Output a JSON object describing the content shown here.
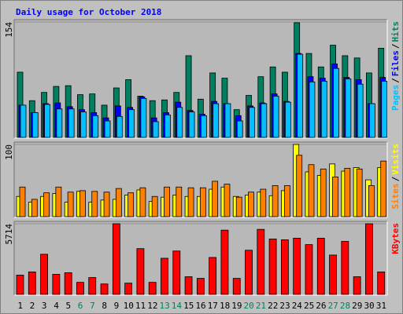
{
  "chart_data": [
    {
      "type": "bar",
      "title": "Daily usage for October 2018",
      "legend_separator": "/",
      "ylim": [
        0,
        154
      ],
      "yticks": [
        154
      ],
      "series": [
        {
          "name": "Hits",
          "color": "#008060",
          "values": [
            87,
            49,
            60,
            68,
            69,
            57,
            58,
            43,
            66,
            77,
            55,
            49,
            50,
            60,
            109,
            51,
            86,
            79,
            37,
            56,
            81,
            94,
            87,
            153,
            112,
            94,
            123,
            109,
            106,
            86,
            119
          ]
        },
        {
          "name": "Files",
          "color": "#0000ff",
          "values": [
            43,
            33,
            45,
            46,
            41,
            37,
            33,
            26,
            42,
            40,
            54,
            26,
            33,
            47,
            36,
            31,
            48,
            45,
            29,
            42,
            46,
            58,
            48,
            112,
            81,
            79,
            98,
            80,
            77,
            45,
            80
          ]
        },
        {
          "name": "Pages",
          "color": "#00c0ff",
          "values": [
            43,
            33,
            44,
            38,
            38,
            34,
            29,
            22,
            28,
            37,
            52,
            21,
            30,
            40,
            34,
            29,
            45,
            45,
            22,
            40,
            45,
            55,
            47,
            111,
            74,
            75,
            92,
            78,
            71,
            45,
            75
          ]
        }
      ]
    },
    {
      "type": "bar",
      "legend_separator": "/",
      "ylim": [
        0,
        100
      ],
      "yticks": [
        100
      ],
      "series": [
        {
          "name": "Visits",
          "color": "#ffff00",
          "values": [
            28,
            20,
            28,
            32,
            20,
            35,
            20,
            23,
            24,
            30,
            37,
            21,
            27,
            30,
            28,
            28,
            38,
            41,
            28,
            30,
            34,
            29,
            36,
            100,
            62,
            57,
            73,
            63,
            68,
            51,
            68
          ]
        },
        {
          "name": "Sites",
          "color": "#ff8000",
          "values": [
            41,
            24,
            33,
            41,
            34,
            36,
            35,
            34,
            39,
            33,
            40,
            28,
            41,
            41,
            40,
            40,
            49,
            45,
            27,
            34,
            38,
            43,
            43,
            85,
            72,
            66,
            55,
            67,
            66,
            43,
            77
          ]
        }
      ]
    },
    {
      "type": "bar",
      "ylim": [
        0,
        5714
      ],
      "yticks": [
        5714
      ],
      "categories": [
        "1",
        "2",
        "3",
        "4",
        "5",
        "6",
        "7",
        "8",
        "9",
        "10",
        "11",
        "12",
        "13",
        "14",
        "15",
        "16",
        "17",
        "18",
        "19",
        "20",
        "21",
        "22",
        "23",
        "24",
        "25",
        "26",
        "27",
        "28",
        "29",
        "30",
        "31"
      ],
      "category_colors": [
        "#000000",
        "#000000",
        "#000000",
        "#000000",
        "#000000",
        "#008060",
        "#008060",
        "#000000",
        "#000000",
        "#000000",
        "#000000",
        "#000000",
        "#008060",
        "#008060",
        "#000000",
        "#000000",
        "#000000",
        "#000000",
        "#000000",
        "#008060",
        "#008060",
        "#000000",
        "#000000",
        "#000000",
        "#000000",
        "#000000",
        "#008060",
        "#008060",
        "#000000",
        "#000000",
        "#000000"
      ],
      "series": [
        {
          "name": "KBytes",
          "color": "#ff0000",
          "values": [
            1558,
            1817,
            3245,
            1623,
            1753,
            974,
            1363,
            844,
            5714,
            909,
            3700,
            974,
            2921,
            3506,
            1428,
            1298,
            2986,
            5194,
            1298,
            3571,
            5259,
            4480,
            4415,
            4545,
            4026,
            4545,
            3181,
            4285,
            1428,
            5714,
            1817
          ]
        }
      ]
    }
  ]
}
